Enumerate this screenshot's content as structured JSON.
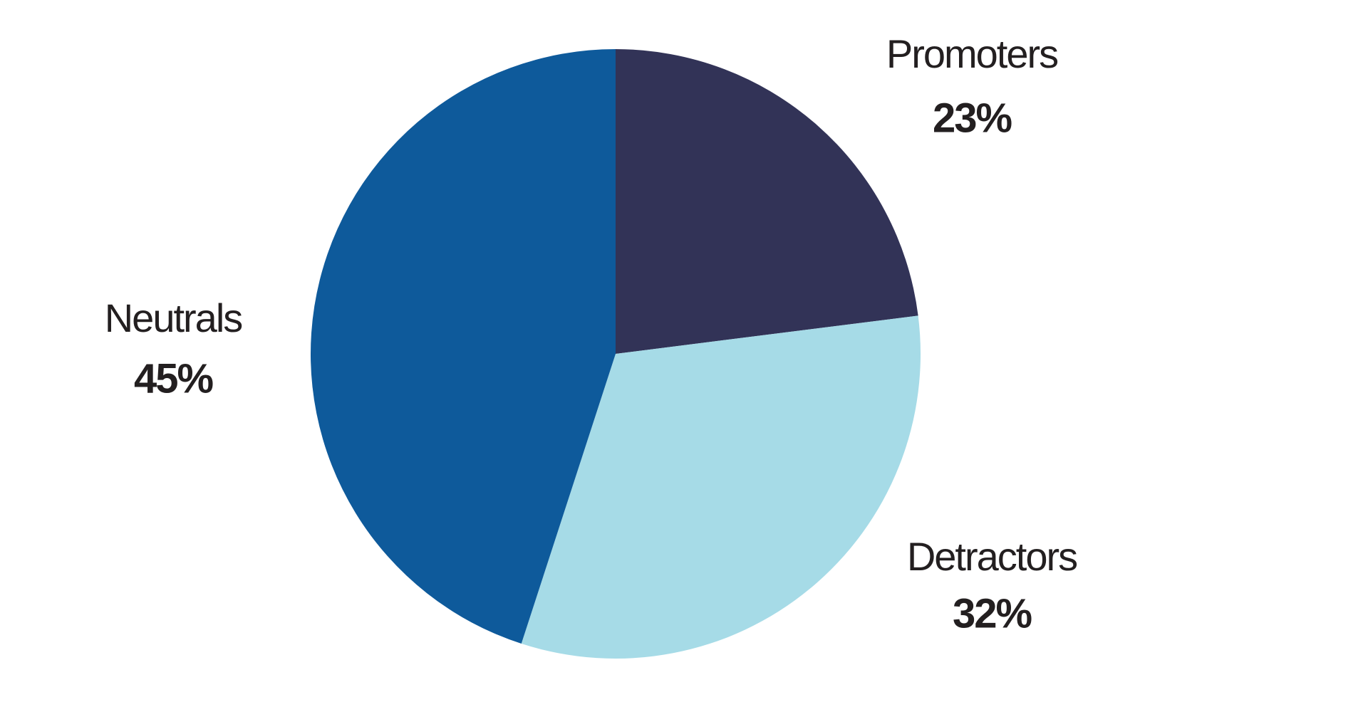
{
  "chart_data": {
    "type": "pie",
    "categories": [
      "Promoters",
      "Detractors",
      "Neutrals"
    ],
    "values": [
      23,
      32,
      45
    ],
    "value_labels": [
      "23%",
      "32%",
      "45%"
    ],
    "colors": [
      "#323357",
      "#a6dbe7",
      "#0e5a9b"
    ]
  }
}
